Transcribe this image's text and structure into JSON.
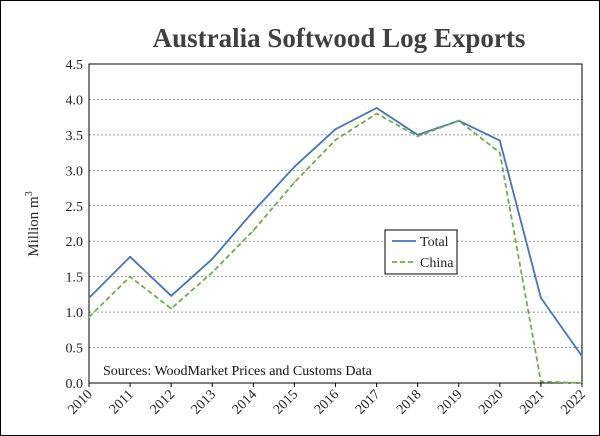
{
  "chart_data": {
    "type": "line",
    "title": "Australia Softwood Log Exports",
    "xlabel": "",
    "ylabel": "Million m",
    "ylabel_superscript": "3",
    "x": [
      "2010",
      "2011",
      "2012",
      "2013",
      "2014",
      "2015",
      "2016",
      "2017",
      "2018",
      "2019",
      "2020",
      "2021",
      "2022"
    ],
    "ylim": [
      0,
      4.5
    ],
    "yticks": [
      "0.0",
      "0.5",
      "1.0",
      "1.5",
      "2.0",
      "2.5",
      "3.0",
      "3.5",
      "4.0",
      "4.5"
    ],
    "grid": true,
    "legend_position": "center-right",
    "annotation": "Sources: WoodMarket Prices and Customs Data",
    "series": [
      {
        "name": "Total",
        "color": "#4472c4",
        "style": "solid",
        "values": [
          1.2,
          1.78,
          1.23,
          1.75,
          2.42,
          3.05,
          3.58,
          3.88,
          3.5,
          3.7,
          3.42,
          1.2,
          0.38
        ]
      },
      {
        "name": "China",
        "color": "#70ad47",
        "style": "dashed",
        "values": [
          0.93,
          1.5,
          1.05,
          1.56,
          2.15,
          2.83,
          3.43,
          3.8,
          3.48,
          3.7,
          3.25,
          0.02,
          0.0
        ]
      }
    ]
  }
}
